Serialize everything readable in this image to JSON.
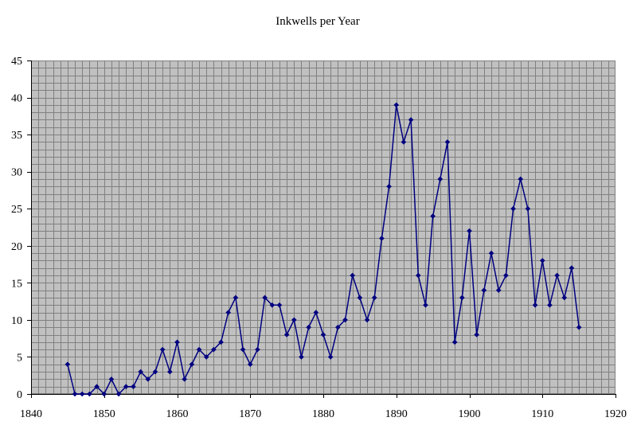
{
  "chart_data": {
    "type": "line",
    "title": "Inkwells per Year",
    "xlabel": "",
    "ylabel": "",
    "xlim": [
      1840,
      1920
    ],
    "ylim": [
      0,
      45
    ],
    "x_ticks": [
      "1840",
      "1850",
      "1860",
      "1870",
      "1880",
      "1890",
      "1900",
      "1910",
      "1920"
    ],
    "y_ticks": [
      "0",
      "5",
      "10",
      "15",
      "20",
      "25",
      "30",
      "35",
      "40",
      "45"
    ],
    "grid": true,
    "plot_background": "#c0c0c0",
    "grid_color": "#808080",
    "series": [
      {
        "color": "#000080",
        "marker": "diamond",
        "x": [
          1845,
          1846,
          1847,
          1848,
          1849,
          1850,
          1851,
          1852,
          1853,
          1854,
          1855,
          1856,
          1857,
          1858,
          1859,
          1860,
          1861,
          1862,
          1863,
          1864,
          1865,
          1866,
          1867,
          1868,
          1869,
          1870,
          1871,
          1872,
          1873,
          1874,
          1875,
          1876,
          1877,
          1878,
          1879,
          1880,
          1881,
          1882,
          1883,
          1884,
          1885,
          1886,
          1887,
          1888,
          1889,
          1890,
          1891,
          1892,
          1893,
          1894,
          1895,
          1896,
          1897,
          1898,
          1899,
          1900,
          1901,
          1902,
          1903,
          1904,
          1905,
          1906,
          1907,
          1908,
          1909,
          1910,
          1911,
          1912,
          1913,
          1914,
          1915
        ],
        "values": [
          4,
          0,
          0,
          0,
          1,
          0,
          2,
          0,
          1,
          1,
          3,
          2,
          3,
          6,
          3,
          7,
          2,
          4,
          6,
          5,
          6,
          7,
          11,
          13,
          6,
          4,
          6,
          13,
          12,
          12,
          8,
          10,
          5,
          9,
          11,
          8,
          5,
          9,
          10,
          16,
          13,
          10,
          13,
          21,
          28,
          39,
          34,
          37,
          16,
          12,
          24,
          29,
          34,
          7,
          13,
          22,
          8,
          14,
          19,
          14,
          16,
          25,
          29,
          25,
          12,
          18,
          12,
          16,
          13,
          17,
          9
        ]
      }
    ]
  }
}
